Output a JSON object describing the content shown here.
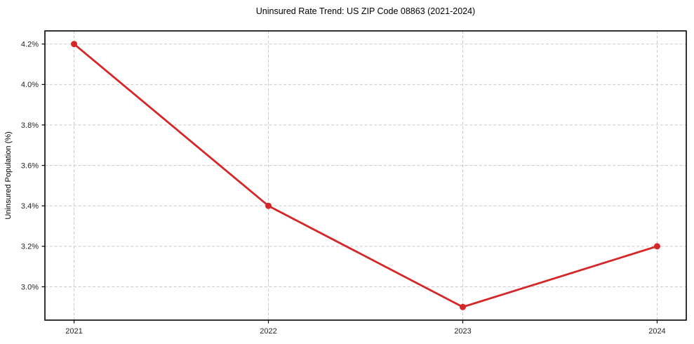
{
  "page": {
    "background": "#ffffff"
  },
  "chart_data": {
    "type": "line",
    "title": "Uninsured Rate Trend: US ZIP Code 08863 (2021-2024)",
    "xlabel": "",
    "ylabel": "Uninsured Population (%)",
    "x": [
      2021,
      2022,
      2023,
      2024
    ],
    "values": [
      4.2,
      3.4,
      2.9,
      3.2
    ],
    "xticks": [
      2021,
      2022,
      2023,
      2024
    ],
    "xtick_labels": [
      "2021",
      "2022",
      "2023",
      "2024"
    ],
    "yticks": [
      3.0,
      3.2,
      3.4,
      3.6,
      3.8,
      4.0,
      4.2
    ],
    "ytick_labels": [
      "3.0%",
      "3.2%",
      "3.4%",
      "3.6%",
      "3.8%",
      "4.0%",
      "4.2%"
    ],
    "xlim": [
      2020.85,
      2024.15
    ],
    "ylim": [
      2.835,
      4.265
    ],
    "grid": true,
    "legend": false,
    "line_color": "#d62728",
    "marker": "circle",
    "marker_radius": 4.5,
    "line_width": 2.8,
    "grid_color": "#c9c9c9",
    "axis_color": "#000000",
    "text_color": "#262626"
  }
}
